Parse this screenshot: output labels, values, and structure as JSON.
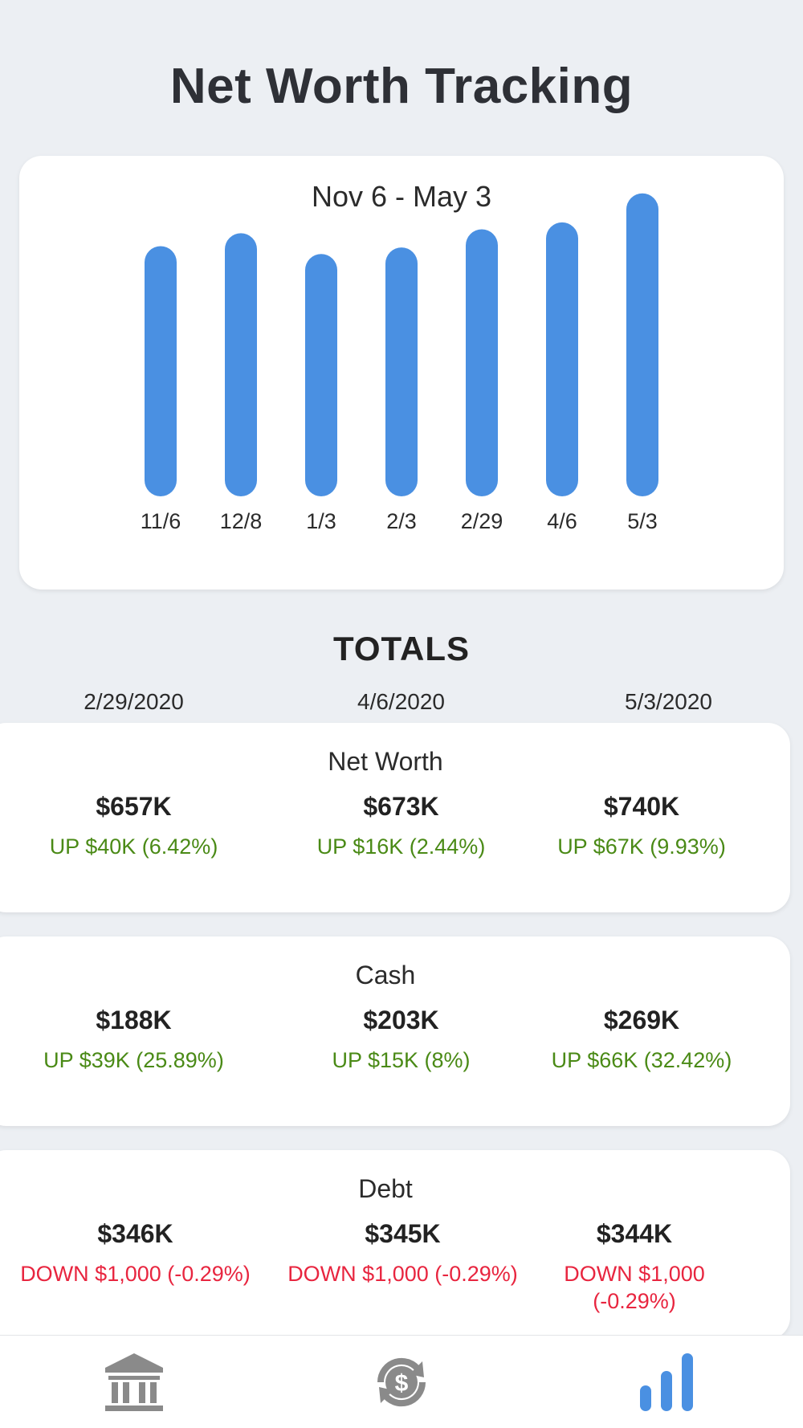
{
  "header": {
    "title": "Net Worth Tracking"
  },
  "chart_data": {
    "type": "bar",
    "title": "Nov 6 - May 3",
    "categories": [
      "11/6",
      "12/8",
      "1/3",
      "2/3",
      "2/29",
      "4/6",
      "5/3"
    ],
    "values": [
      578,
      608,
      560,
      575,
      617,
      633,
      700
    ],
    "ylim": [
      0,
      720
    ],
    "grid": false,
    "color": "#4a90e2"
  },
  "totals": {
    "heading": "TOTALS",
    "dates": [
      "2/29/2020",
      "4/6/2020",
      "5/3/2020"
    ],
    "cards": [
      {
        "label": "Net Worth",
        "cells": [
          {
            "amount": "$657K",
            "change": "UP $40K (6.42%)",
            "direction": "up"
          },
          {
            "amount": "$673K",
            "change": "UP $16K (2.44%)",
            "direction": "up"
          },
          {
            "amount": "$740K",
            "change": "UP $67K (9.93%)",
            "direction": "up"
          }
        ]
      },
      {
        "label": "Cash",
        "cells": [
          {
            "amount": "$188K",
            "change": "UP $39K (25.89%)",
            "direction": "up"
          },
          {
            "amount": "$203K",
            "change": "UP $15K (8%)",
            "direction": "up"
          },
          {
            "amount": "$269K",
            "change": "UP $66K (32.42%)",
            "direction": "up"
          }
        ]
      },
      {
        "label": "Debt",
        "cells": [
          {
            "amount": "$346K",
            "change": "DOWN $1,000 (-0.29%)",
            "direction": "down"
          },
          {
            "amount": "$345K",
            "change": "DOWN $1,000 (-0.29%)",
            "direction": "down"
          },
          {
            "amount": "$344K",
            "change": "DOWN $1,000 (-0.29%)",
            "direction": "down"
          }
        ]
      }
    ]
  },
  "tabbar": {
    "tabs": [
      {
        "icon": "bank-icon",
        "active": false
      },
      {
        "icon": "dollar-sync-icon",
        "active": false
      },
      {
        "icon": "bar-chart-icon",
        "active": true
      }
    ],
    "active_color": "#4a90e2",
    "inactive_color": "#8a8a8a"
  }
}
